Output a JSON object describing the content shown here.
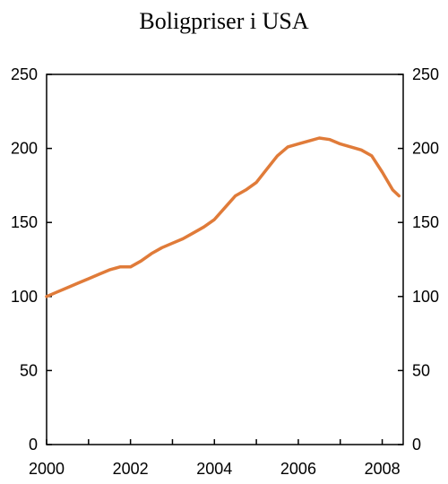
{
  "chart_data": {
    "type": "line",
    "title": "Boligpriser i USA",
    "xlabel": "",
    "ylabel": "",
    "xlim": [
      2000,
      2008.5
    ],
    "ylim": [
      0,
      250
    ],
    "x_ticks": [
      2000,
      2002,
      2004,
      2006,
      2008
    ],
    "y_ticks": [
      0,
      50,
      100,
      150,
      200,
      250
    ],
    "x_tick_labels": [
      "2000",
      "2002",
      "2004",
      "2006",
      "2008"
    ],
    "y_tick_labels": [
      "0",
      "50",
      "100",
      "150",
      "200",
      "250"
    ],
    "grid": false,
    "legend": "none",
    "series": [
      {
        "color": "#e07b39",
        "x": [
          2000.0,
          2000.25,
          2000.5,
          2000.75,
          2001.0,
          2001.25,
          2001.5,
          2001.75,
          2002.0,
          2002.25,
          2002.5,
          2002.75,
          2003.0,
          2003.25,
          2003.5,
          2003.75,
          2004.0,
          2004.25,
          2004.5,
          2004.75,
          2005.0,
          2005.25,
          2005.5,
          2005.75,
          2006.0,
          2006.25,
          2006.5,
          2006.75,
          2007.0,
          2007.25,
          2007.5,
          2007.75,
          2008.0,
          2008.25,
          2008.4
        ],
        "y": [
          100,
          103,
          106,
          109,
          112,
          115,
          118,
          120,
          120,
          124,
          129,
          133,
          136,
          139,
          143,
          147,
          152,
          160,
          168,
          172,
          177,
          186,
          195,
          201,
          203,
          205,
          207,
          206,
          203,
          201,
          199,
          195,
          184,
          172,
          168
        ]
      }
    ]
  }
}
